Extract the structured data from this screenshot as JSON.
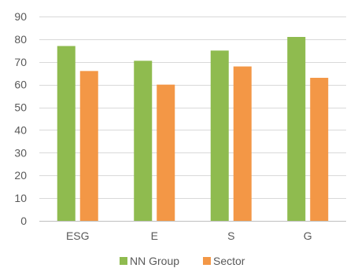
{
  "chart_data": {
    "type": "bar",
    "categories": [
      "ESG",
      "E",
      "S",
      "G"
    ],
    "series": [
      {
        "name": "NN Group",
        "values": [
          77,
          70.5,
          75,
          81
        ],
        "color": "#8fbb4f"
      },
      {
        "name": "Sector",
        "values": [
          66,
          60,
          68,
          63
        ],
        "color": "#f39746"
      }
    ],
    "title": "",
    "xlabel": "",
    "ylabel": "",
    "ylim": [
      0,
      90
    ],
    "yticks": [
      0,
      10,
      20,
      30,
      40,
      50,
      60,
      70,
      80,
      90
    ],
    "grid": true,
    "legend": "bottom"
  }
}
